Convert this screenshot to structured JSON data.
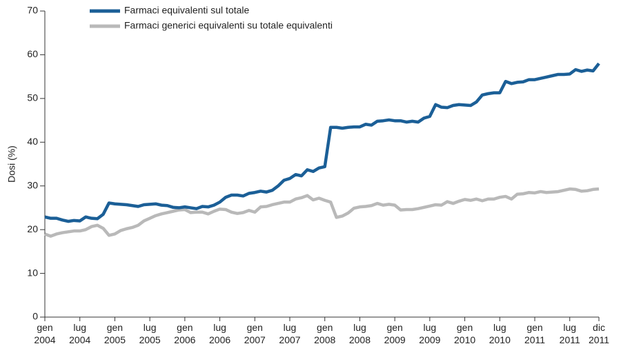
{
  "chart_data": {
    "type": "line",
    "y_label": "Dosi (%)",
    "categories": [
      "gen 2004",
      null,
      null,
      null,
      null,
      null,
      "lug 2004",
      null,
      null,
      null,
      null,
      null,
      "gen 2005",
      null,
      null,
      null,
      null,
      null,
      "lug 2005",
      null,
      null,
      null,
      null,
      null,
      "gen 2006",
      null,
      null,
      null,
      null,
      null,
      "lug 2006",
      null,
      null,
      null,
      null,
      null,
      "gen 2007",
      null,
      null,
      null,
      null,
      null,
      "lug 2007",
      null,
      null,
      null,
      null,
      null,
      "gen 2008",
      null,
      null,
      null,
      null,
      null,
      "lug 2008",
      null,
      null,
      null,
      null,
      null,
      "gen 2009",
      null,
      null,
      null,
      null,
      null,
      "lug 2009",
      null,
      null,
      null,
      null,
      null,
      "gen 2010",
      null,
      null,
      null,
      null,
      null,
      "lug 2010",
      null,
      null,
      null,
      null,
      null,
      "gen 2011",
      null,
      null,
      null,
      null,
      null,
      "lug 2011",
      null,
      null,
      null,
      null,
      "dic 2011"
    ],
    "series": [
      {
        "name": "Farmaci equivalenti sul totale",
        "color": "#1b5f97",
        "values": [
          22.9,
          22.6,
          22.6,
          22.2,
          21.9,
          22.1,
          22.0,
          22.9,
          22.6,
          22.5,
          23.5,
          26.1,
          25.9,
          25.8,
          25.7,
          25.5,
          25.3,
          25.7,
          25.8,
          25.9,
          25.6,
          25.5,
          25.1,
          25.0,
          25.2,
          25.0,
          24.8,
          25.3,
          25.2,
          25.6,
          26.3,
          27.4,
          27.9,
          27.9,
          27.7,
          28.3,
          28.5,
          28.8,
          28.6,
          29.0,
          30.0,
          31.3,
          31.7,
          32.6,
          32.3,
          33.7,
          33.3,
          34.1,
          34.4,
          43.4,
          43.4,
          43.2,
          43.4,
          43.5,
          43.5,
          44.1,
          43.9,
          44.8,
          44.9,
          45.1,
          44.9,
          44.9,
          44.6,
          44.8,
          44.6,
          45.5,
          45.9,
          48.6,
          48.0,
          47.9,
          48.4,
          48.6,
          48.5,
          48.4,
          49.2,
          50.8,
          51.1,
          51.3,
          51.3,
          53.9,
          53.4,
          53.7,
          53.8,
          54.3,
          54.3,
          54.6,
          54.9,
          55.2,
          55.5,
          55.5,
          55.6,
          56.6,
          56.2,
          56.5,
          56.3,
          58.0
        ]
      },
      {
        "name": "Farmaci generici equivalenti su totale equivalenti",
        "color": "#b9b9b9",
        "values": [
          19.0,
          18.5,
          19.0,
          19.3,
          19.5,
          19.7,
          19.7,
          20.0,
          20.7,
          21.0,
          20.3,
          18.7,
          19.0,
          19.8,
          20.2,
          20.5,
          21.0,
          22.0,
          22.6,
          23.2,
          23.6,
          23.9,
          24.2,
          24.5,
          24.6,
          23.9,
          24.0,
          24.0,
          23.6,
          24.2,
          24.7,
          24.6,
          24.0,
          23.7,
          23.9,
          24.4,
          24.0,
          25.2,
          25.3,
          25.7,
          26.0,
          26.3,
          26.3,
          27.0,
          27.3,
          27.8,
          26.8,
          27.2,
          26.7,
          26.3,
          22.8,
          23.1,
          23.8,
          24.9,
          25.2,
          25.3,
          25.5,
          26.0,
          25.6,
          25.8,
          25.6,
          24.5,
          24.6,
          24.6,
          24.8,
          25.1,
          25.4,
          25.7,
          25.6,
          26.4,
          26.0,
          26.5,
          26.9,
          26.7,
          27.0,
          26.6,
          27.0,
          27.0,
          27.4,
          27.6,
          27.0,
          28.1,
          28.2,
          28.5,
          28.4,
          28.7,
          28.5,
          28.6,
          28.7,
          29.0,
          29.3,
          29.2,
          28.8,
          28.9,
          29.2,
          29.3
        ]
      }
    ],
    "ylim": [
      0,
      70
    ],
    "yticks": [
      0,
      10,
      20,
      30,
      40,
      50,
      60,
      70
    ],
    "grid": false
  }
}
